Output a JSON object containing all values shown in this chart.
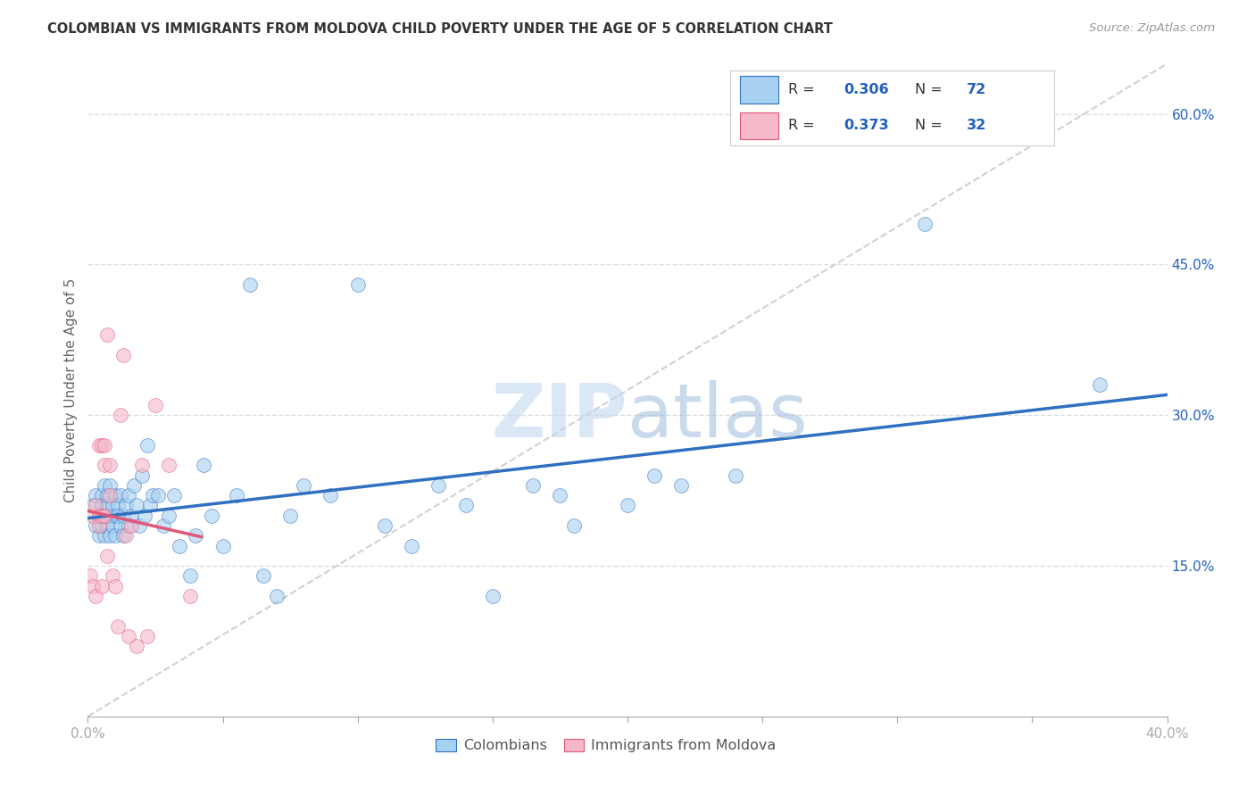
{
  "title": "COLOMBIAN VS IMMIGRANTS FROM MOLDOVA CHILD POVERTY UNDER THE AGE OF 5 CORRELATION CHART",
  "source": "Source: ZipAtlas.com",
  "ylabel": "Child Poverty Under the Age of 5",
  "xlim": [
    0.0,
    0.4
  ],
  "ylim": [
    0.0,
    0.65
  ],
  "right_yticks": [
    0.15,
    0.3,
    0.45,
    0.6
  ],
  "right_yticklabels": [
    "15.0%",
    "30.0%",
    "45.0%",
    "60.0%"
  ],
  "xticks": [
    0.0,
    0.05,
    0.1,
    0.15,
    0.2,
    0.25,
    0.3,
    0.35,
    0.4
  ],
  "xticklabels": [
    "0.0%",
    "",
    "",
    "",
    "",
    "",
    "",
    "",
    "40.0%"
  ],
  "watermark_zip": "ZIP",
  "watermark_atlas": "atlas",
  "legend_r1_label": "R = ",
  "legend_r1_val": "0.306",
  "legend_n1_label": "N = ",
  "legend_n1_val": "72",
  "legend_r2_label": "R = ",
  "legend_r2_val": "0.373",
  "legend_n2_label": "N = ",
  "legend_n2_val": "32",
  "color_blue": "#A8D0F0",
  "color_pink": "#F5B8C8",
  "color_blue_line": "#3070C0",
  "color_pink_line": "#E05878",
  "color_diag": "#CCCCCC",
  "color_text_blue": "#2060C0",
  "color_axis": "#AAAAAA",
  "color_grid": "#DDDDDD",
  "blue_x": [
    0.002,
    0.003,
    0.003,
    0.004,
    0.004,
    0.005,
    0.005,
    0.005,
    0.006,
    0.006,
    0.006,
    0.007,
    0.007,
    0.007,
    0.008,
    0.008,
    0.008,
    0.009,
    0.009,
    0.01,
    0.01,
    0.01,
    0.011,
    0.011,
    0.012,
    0.012,
    0.013,
    0.013,
    0.014,
    0.015,
    0.015,
    0.016,
    0.017,
    0.018,
    0.019,
    0.02,
    0.021,
    0.022,
    0.023,
    0.024,
    0.026,
    0.028,
    0.03,
    0.032,
    0.034,
    0.038,
    0.04,
    0.043,
    0.046,
    0.05,
    0.055,
    0.06,
    0.065,
    0.07,
    0.075,
    0.08,
    0.09,
    0.1,
    0.11,
    0.12,
    0.13,
    0.14,
    0.15,
    0.165,
    0.175,
    0.18,
    0.2,
    0.21,
    0.22,
    0.24,
    0.31,
    0.375
  ],
  "blue_y": [
    0.21,
    0.19,
    0.22,
    0.2,
    0.18,
    0.22,
    0.19,
    0.21,
    0.2,
    0.23,
    0.18,
    0.21,
    0.19,
    0.22,
    0.2,
    0.18,
    0.23,
    0.21,
    0.19,
    0.2,
    0.22,
    0.18,
    0.21,
    0.2,
    0.19,
    0.22,
    0.2,
    0.18,
    0.21,
    0.22,
    0.19,
    0.2,
    0.23,
    0.21,
    0.19,
    0.24,
    0.2,
    0.27,
    0.21,
    0.22,
    0.22,
    0.19,
    0.2,
    0.22,
    0.17,
    0.14,
    0.18,
    0.25,
    0.2,
    0.17,
    0.22,
    0.43,
    0.14,
    0.12,
    0.2,
    0.23,
    0.22,
    0.43,
    0.19,
    0.17,
    0.23,
    0.21,
    0.12,
    0.23,
    0.22,
    0.19,
    0.21,
    0.24,
    0.23,
    0.24,
    0.49,
    0.33
  ],
  "pink_x": [
    0.001,
    0.002,
    0.002,
    0.003,
    0.003,
    0.004,
    0.004,
    0.004,
    0.005,
    0.005,
    0.005,
    0.006,
    0.006,
    0.006,
    0.007,
    0.007,
    0.008,
    0.008,
    0.009,
    0.01,
    0.011,
    0.012,
    0.013,
    0.014,
    0.015,
    0.016,
    0.018,
    0.02,
    0.022,
    0.025,
    0.03,
    0.038
  ],
  "pink_y": [
    0.14,
    0.13,
    0.2,
    0.12,
    0.21,
    0.2,
    0.27,
    0.19,
    0.2,
    0.27,
    0.13,
    0.25,
    0.2,
    0.27,
    0.38,
    0.16,
    0.22,
    0.25,
    0.14,
    0.13,
    0.09,
    0.3,
    0.36,
    0.18,
    0.08,
    0.19,
    0.07,
    0.25,
    0.08,
    0.31,
    0.25,
    0.12
  ],
  "scatter_size": 130,
  "scatter_alpha": 0.6,
  "background_color": "#FFFFFF"
}
